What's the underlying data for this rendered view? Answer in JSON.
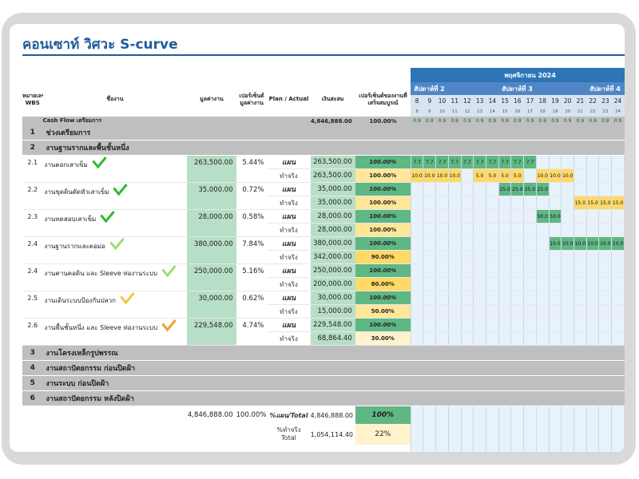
{
  "title": "คอนเซาท์ วิศวะ S-curve",
  "headers": {
    "wbs": "หมายเลข WBS",
    "name": "ชื่องาน",
    "value": "มูลค่างาน",
    "pct": "เปอร์เซ็นต์มูลค่างาน",
    "plan_actual": "Plan / Actual",
    "cumulative": "เงินสะสม",
    "complete": "เปอร์เซ็นต์ของงานที่เสร็จสมบูรณ์"
  },
  "month": "พฤศจิกายน 2024",
  "weeks": [
    "สัปดาห์ที่ 2",
    "สัปดาห์ที่ 3",
    "สัปดาห์ที่ 4"
  ],
  "days": [
    "8",
    "9",
    "10",
    "11",
    "12",
    "13",
    "14",
    "15",
    "16",
    "17",
    "18",
    "19",
    "20",
    "21",
    "22",
    "23",
    "24",
    "25",
    "26"
  ],
  "dows": [
    "8",
    "9",
    "10",
    "11",
    "12",
    "13",
    "14",
    "15",
    "16",
    "17",
    "18",
    "19",
    "20",
    "21",
    "22",
    "23",
    "24",
    "25",
    "26"
  ],
  "cashflow": {
    "label": "Cash Flow เตรียมการ",
    "cumulative": "4,846,888.00",
    "complete": "100.00%",
    "value": "0.9"
  },
  "sections": {
    "s1": {
      "num": "1",
      "name": "ช่วงเตรียมการ"
    },
    "s2": {
      "num": "2",
      "name": "งานฐานรากและพื้นชั้นหนึ่ง"
    },
    "s3": {
      "num": "3",
      "name": "งานโครงเหล็กรูปพรรณ"
    },
    "s4": {
      "num": "4",
      "name": "งานสถาปัตยกรรม ก่อนปิดฝ้า"
    },
    "s5": {
      "num": "5",
      "name": "งานระบบ ก่อนปิดฝ้า"
    },
    "s6": {
      "num": "6",
      "name": "งานสถาปัตยกรรม หลังปิดฝ้า"
    }
  },
  "plan_label": "แผน",
  "actual_label": "ทำจริง",
  "tasks": [
    {
      "wbs": "2.1",
      "name": "งานตอกเสาเข็ม",
      "value": "263,500.00",
      "pct": "5.44%",
      "plan_cum": "263,500.00",
      "plan_pct": "100.00%",
      "act_cum": "263,500.00",
      "act_pct": "100.00%",
      "check_color": "#2eb82e",
      "plan_bars": [
        "7.7",
        "7.7",
        "7.7",
        "7.7",
        "7.7",
        "7.7",
        "7.7",
        "7.7",
        "7.7",
        "7.7"
      ],
      "plan_start": 0,
      "act_bars": [
        "10.0",
        "10.0",
        "10.0",
        "10.0",
        "",
        "5.0",
        "5.0",
        "5.0",
        "5.0",
        "",
        "10.0",
        "10.0",
        "10.0"
      ],
      "act_start": 0
    },
    {
      "wbs": "2.2",
      "name": "งานขุดดินตัดหัวเสาเข็ม",
      "value": "35,000.00",
      "pct": "0.72%",
      "plan_cum": "35,000.00",
      "plan_pct": "100.00%",
      "act_cum": "35,000.00",
      "act_pct": "100.00%",
      "check_color": "#2eb82e",
      "plan_bars": [
        "25.0",
        "25.0",
        "25.0",
        "25.0"
      ],
      "plan_start": 7,
      "act_bars": [
        "15.0",
        "15.0",
        "15.0",
        "15.0",
        "15.0",
        "15.0",
        "15.0"
      ],
      "act_start": 13
    },
    {
      "wbs": "2.3",
      "name": "งานทดสอบเสาเข็ม",
      "value": "28,000.00",
      "pct": "0.58%",
      "plan_cum": "28,000.00",
      "plan_pct": "100.00%",
      "act_cum": "28,000.00",
      "act_pct": "100.00%",
      "check_color": "#2eb82e",
      "plan_bars": [
        "50.0",
        "50.0"
      ],
      "plan_start": 10,
      "act_bars": [
        "25.0"
      ],
      "act_start": 18
    },
    {
      "wbs": "2.4",
      "name": "งานฐานรากและตอม่อ",
      "value": "380,000.00",
      "pct": "7.84%",
      "plan_cum": "380,000.00",
      "plan_pct": "100.00%",
      "act_cum": "342,000.00",
      "act_pct": "90.00%",
      "check_color": "#9be06b",
      "plan_bars": [
        "10.0",
        "10.0",
        "10.0",
        "10.0",
        "10.0",
        "10.0",
        "10.0",
        "10.0",
        "10.0"
      ],
      "plan_start": 11,
      "act_bars": [],
      "act_start": 0
    },
    {
      "wbs": "2.4",
      "name": "งานคานคอดิน และ Sleeve ท่องานระบบ",
      "value": "250,000.00",
      "pct": "5.16%",
      "plan_cum": "250,000.00",
      "plan_pct": "100.00%",
      "act_cum": "200,000.00",
      "act_pct": "80.00%",
      "check_color": "#9be06b",
      "plan_bars": [
        "6.3",
        "6.3"
      ],
      "plan_start": 17,
      "act_bars": [],
      "act_start": 0
    },
    {
      "wbs": "2.5",
      "name": "งานเดินระบบป้องกันปลวก",
      "value": "30,000.00",
      "pct": "0.62%",
      "plan_cum": "30,000.00",
      "plan_pct": "100.00%",
      "act_cum": "15,000.00",
      "act_pct": "50.00%",
      "check_color": "#f5c542",
      "plan_bars": [],
      "plan_start": 0,
      "act_bars": [],
      "act_start": 0
    },
    {
      "wbs": "2.6",
      "name": "งานพื้นชั้นหนึ่ง และ Sleeve ท่องานระบบ",
      "value": "229,548.00",
      "pct": "4.74%",
      "plan_cum": "229,548.00",
      "plan_pct": "100.00%",
      "act_cum": "68,864.40",
      "act_pct": "30.00%",
      "check_color": "#f0a030",
      "plan_bars": [],
      "plan_start": 0,
      "act_bars": [],
      "act_start": 0
    }
  ],
  "totals": {
    "value": "4,846,888.00",
    "pct": "100.00%",
    "plan_label": "%แผน/Total",
    "plan_cum": "4,846,888.00",
    "plan_pct": "100%",
    "act_label_1": "%ทำจริง",
    "act_label_2": "Total",
    "act_cum": "1,054,114.40",
    "act_pct": "22%"
  },
  "colors": {
    "title": "#1f5c99",
    "month": "#2e75b6",
    "week": "#4f86c6",
    "plan_bar": "#5fb784",
    "actual_bar": "#ffd966"
  }
}
